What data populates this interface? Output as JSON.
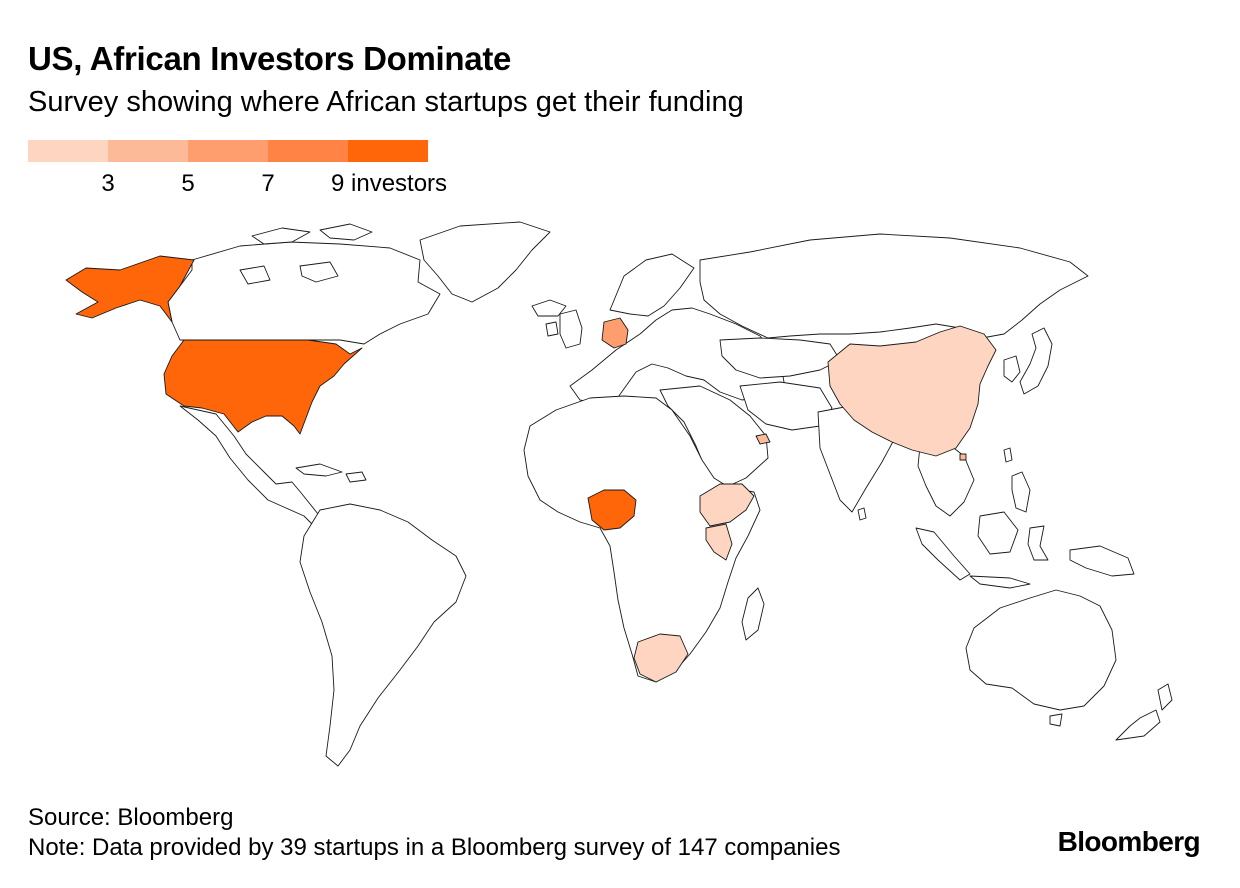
{
  "header": {
    "title": "US, African Investors Dominate",
    "subtitle": "Survey showing where African startups get their funding"
  },
  "legend": {
    "colors": [
      "#FDD5C1",
      "#FDBA98",
      "#FE9E6E",
      "#FF8344",
      "#FF6509"
    ],
    "ticks": [
      "3",
      "5",
      "7",
      "9 investors"
    ]
  },
  "map": {
    "base_color": "#ffffff",
    "stroke_color": "#1a1a1a",
    "highlighted": [
      {
        "region": "Alaska (United States)",
        "color": "#FF6509"
      },
      {
        "region": "United States",
        "color": "#FF6509"
      },
      {
        "region": "Nigeria",
        "color": "#FF6509"
      },
      {
        "region": "Germany",
        "color": "#FE9E6E"
      },
      {
        "region": "China",
        "color": "#FDD5C1"
      },
      {
        "region": "Ethiopia",
        "color": "#FDD5C1"
      },
      {
        "region": "Kenya",
        "color": "#FDD5C1"
      },
      {
        "region": "South Africa",
        "color": "#FDD5C1"
      },
      {
        "region": "United Arab Emirates",
        "color": "#FDBA98"
      },
      {
        "region": "Hong Kong",
        "color": "#FDBA98"
      }
    ]
  },
  "footer": {
    "source": "Source: Bloomberg",
    "note": "Note: Data provided by 39 startups in a Bloomberg survey of 147 companies",
    "brand": "Bloomberg"
  }
}
